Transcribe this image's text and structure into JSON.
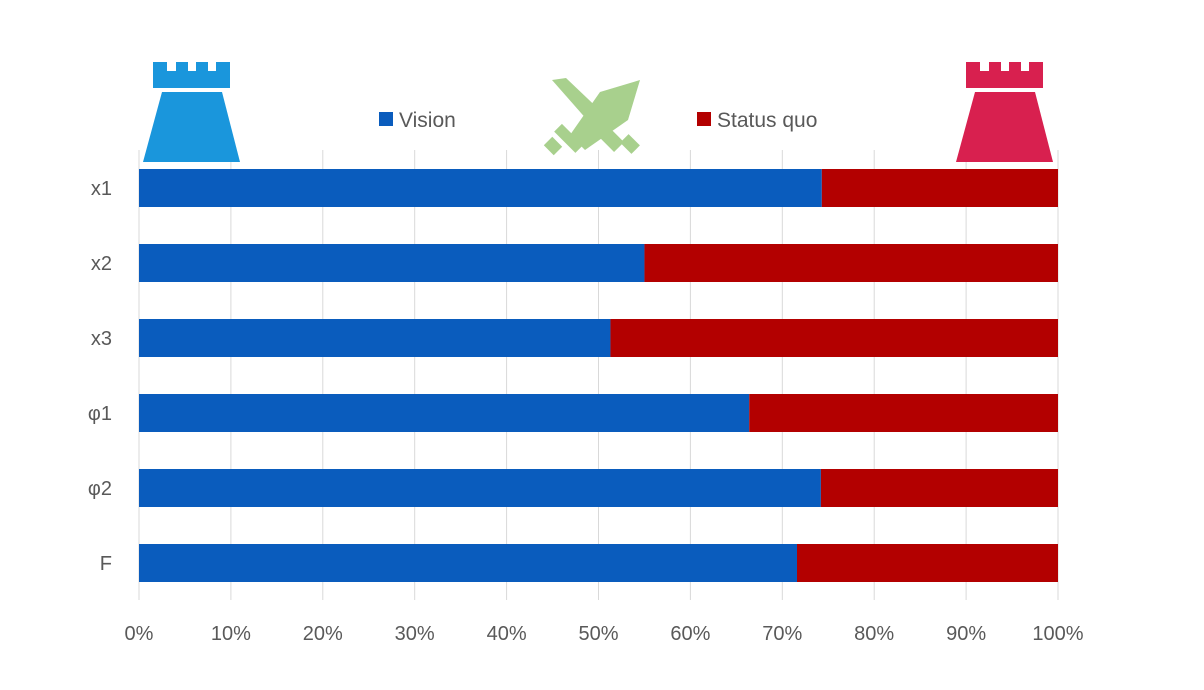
{
  "chart_data": {
    "type": "bar",
    "orientation": "horizontal",
    "stacked": true,
    "percent_stacked": true,
    "categories": [
      "x1",
      "x2",
      "x3",
      "φ1",
      "φ2",
      "F"
    ],
    "series": [
      {
        "name": "Vision",
        "color": "#0a5cbd",
        "values": [
          74.3,
          55.0,
          51.3,
          66.4,
          74.2,
          71.6
        ]
      },
      {
        "name": "Status quo",
        "color": "#b30000",
        "values": [
          25.7,
          45.0,
          48.7,
          33.6,
          25.8,
          28.4
        ]
      }
    ],
    "x_ticks": [
      "0%",
      "10%",
      "20%",
      "30%",
      "40%",
      "50%",
      "60%",
      "70%",
      "80%",
      "90%",
      "100%"
    ],
    "xlim": [
      0,
      100
    ],
    "grid": "vertical",
    "legend_position": "top",
    "title": "",
    "xlabel": "",
    "ylabel": ""
  },
  "icons": {
    "left": {
      "name": "castle-tower-icon",
      "color": "#1a96dc"
    },
    "center": {
      "name": "crossed-swords-icon",
      "color": "#a8d08d"
    },
    "right": {
      "name": "castle-tower-icon",
      "color": "#d8204f"
    }
  }
}
